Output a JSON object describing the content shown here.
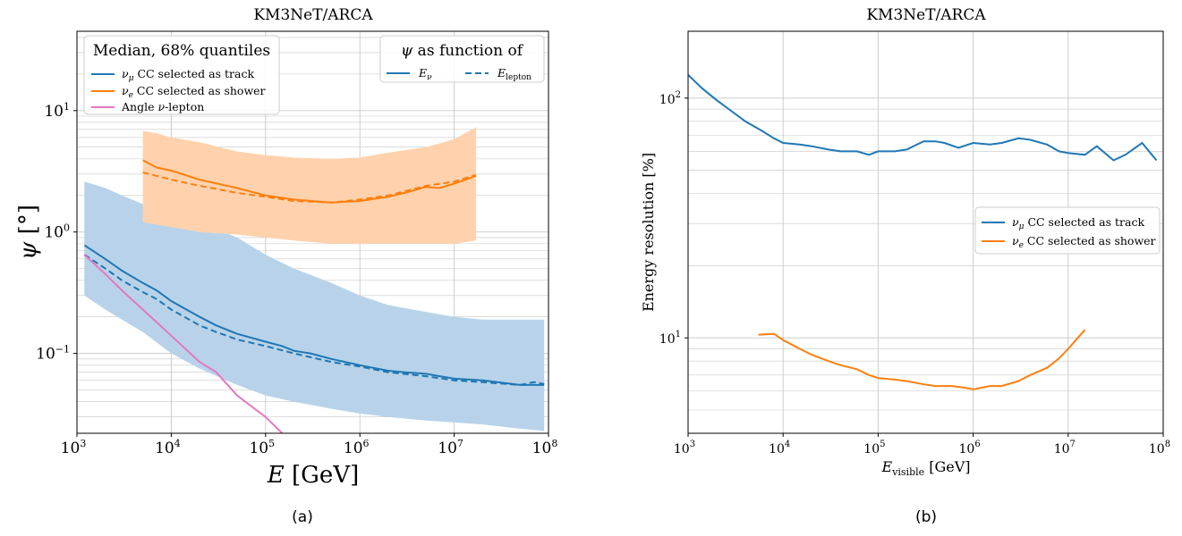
{
  "colors": {
    "blue": "#1f77b4",
    "orange": "#ff7f0e",
    "pink": "#e377c2",
    "blue_band": "#b8d3e9",
    "orange_band": "#ffd2ad",
    "grid": "#c8c8c8"
  },
  "chart_data": [
    {
      "type": "line",
      "panel_label": "(a)",
      "title": "KM3NeT/ARCA",
      "xlabel": "E [GeV]",
      "ylabel": "ψ [°]",
      "x_scale": "log",
      "y_scale": "log",
      "xlim": [
        1000,
        100000000
      ],
      "ylim": [
        0.022,
        45
      ],
      "x_ticks": [
        {
          "v": 1000,
          "label": "10^3"
        },
        {
          "v": 10000,
          "label": "10^4"
        },
        {
          "v": 100000,
          "label": "10^5"
        },
        {
          "v": 1000000,
          "label": "10^6"
        },
        {
          "v": 10000000,
          "label": "10^7"
        },
        {
          "v": 100000000,
          "label": "10^8"
        }
      ],
      "y_ticks": [
        {
          "v": 0.1,
          "label": "10^−1"
        },
        {
          "v": 1,
          "label": "10^0"
        },
        {
          "v": 10,
          "label": "10^1"
        }
      ],
      "grid": true,
      "legend_main": {
        "title": "Median, 68% quantiles",
        "position": "top-left",
        "entries": [
          {
            "label": "νμ CC selected as track",
            "color": "blue"
          },
          {
            "label": "νe CC selected as shower",
            "color": "orange"
          },
          {
            "label": "Angle ν-lepton",
            "color": "pink"
          }
        ]
      },
      "legend_style": {
        "title": "ψ as function of",
        "position": "top-right",
        "entries": [
          {
            "label": "Eν",
            "style": "solid"
          },
          {
            "label": "Elepton",
            "style": "dashed"
          }
        ]
      },
      "bands": [
        {
          "name": "νμ CC selected as track",
          "color": "blue_band",
          "x": [
            1200,
            2000,
            3000,
            5000,
            10000,
            20000,
            50000,
            100000,
            200000,
            500000,
            1000000,
            2000000,
            5000000,
            10000000,
            20000000,
            50000000,
            90000000
          ],
          "lower": [
            0.3,
            0.23,
            0.19,
            0.15,
            0.1,
            0.075,
            0.055,
            0.045,
            0.04,
            0.035,
            0.032,
            0.03,
            0.028,
            0.027,
            0.026,
            0.024,
            0.023
          ],
          "upper": [
            2.6,
            2.3,
            2.0,
            1.7,
            1.4,
            1.2,
            0.9,
            0.65,
            0.5,
            0.38,
            0.3,
            0.25,
            0.22,
            0.2,
            0.19,
            0.19,
            0.19
          ]
        },
        {
          "name": "νe CC selected as shower",
          "color": "orange_band",
          "x": [
            5000,
            7000,
            10000,
            20000,
            50000,
            100000,
            200000,
            500000,
            1000000,
            2000000,
            5000000,
            10000000,
            17000000
          ],
          "lower": [
            1.2,
            1.15,
            1.1,
            1.0,
            0.95,
            0.9,
            0.85,
            0.8,
            0.8,
            0.8,
            0.8,
            0.8,
            0.85
          ],
          "upper": [
            6.8,
            6.5,
            6.0,
            5.5,
            4.6,
            4.3,
            4.1,
            4.0,
            4.1,
            4.5,
            5.0,
            5.8,
            7.3
          ]
        }
      ],
      "series": [
        {
          "name": "νμ CC selected as track",
          "style": "solid",
          "color": "blue",
          "x": [
            1200,
            2000,
            3000,
            5000,
            7000,
            10000,
            20000,
            30000,
            50000,
            100000,
            150000,
            200000,
            300000,
            500000,
            1000000,
            2000000,
            3000000,
            5000000,
            7000000,
            10000000,
            20000000,
            50000000,
            90000000
          ],
          "y": [
            0.78,
            0.6,
            0.48,
            0.38,
            0.33,
            0.27,
            0.2,
            0.17,
            0.145,
            0.125,
            0.115,
            0.105,
            0.1,
            0.09,
            0.08,
            0.072,
            0.07,
            0.068,
            0.065,
            0.062,
            0.06,
            0.055,
            0.055
          ]
        },
        {
          "name": "νμ CC selected as track",
          "style": "dashed",
          "color": "blue",
          "x": [
            1200,
            2000,
            3000,
            5000,
            7000,
            10000,
            20000,
            30000,
            50000,
            100000,
            200000,
            500000,
            1000000,
            2000000,
            5000000,
            10000000,
            20000000,
            50000000,
            70000000,
            90000000
          ],
          "y": [
            0.65,
            0.5,
            0.4,
            0.32,
            0.28,
            0.23,
            0.17,
            0.15,
            0.13,
            0.115,
            0.1,
            0.085,
            0.078,
            0.07,
            0.065,
            0.06,
            0.058,
            0.055,
            0.058,
            0.056
          ]
        },
        {
          "name": "νe CC selected as shower",
          "style": "solid",
          "color": "orange",
          "x": [
            5000,
            7000,
            10000,
            20000,
            50000,
            100000,
            200000,
            500000,
            1000000,
            2000000,
            3000000,
            5000000,
            7000000,
            10000000,
            17000000
          ],
          "y": [
            3.9,
            3.4,
            3.2,
            2.7,
            2.3,
            2.0,
            1.85,
            1.75,
            1.8,
            1.95,
            2.1,
            2.35,
            2.3,
            2.5,
            2.9
          ]
        },
        {
          "name": "νe CC selected as shower",
          "style": "dashed",
          "color": "orange",
          "x": [
            5000,
            7000,
            10000,
            20000,
            50000,
            100000,
            200000,
            500000,
            1000000,
            2000000,
            5000000,
            10000000,
            17000000
          ],
          "y": [
            3.1,
            2.9,
            2.7,
            2.4,
            2.1,
            1.95,
            1.8,
            1.75,
            1.85,
            2.0,
            2.4,
            2.6,
            2.95
          ]
        },
        {
          "name": "Angle ν-lepton",
          "style": "solid",
          "color": "pink",
          "x": [
            1200,
            2000,
            3000,
            5000,
            10000,
            20000,
            30000,
            50000,
            100000,
            150000
          ],
          "y": [
            0.65,
            0.45,
            0.33,
            0.23,
            0.14,
            0.085,
            0.07,
            0.045,
            0.03,
            0.022
          ]
        }
      ]
    },
    {
      "type": "line",
      "panel_label": "(b)",
      "title": "KM3NeT/ARCA",
      "xlabel": "E_visible [GeV]",
      "ylabel": "Energy resolution [%]",
      "x_scale": "log",
      "y_scale": "log",
      "xlim": [
        1000,
        100000000
      ],
      "ylim": [
        4.0,
        190
      ],
      "x_ticks": [
        {
          "v": 1000,
          "label": "10^3"
        },
        {
          "v": 10000,
          "label": "10^4"
        },
        {
          "v": 100000,
          "label": "10^5"
        },
        {
          "v": 1000000,
          "label": "10^6"
        },
        {
          "v": 10000000,
          "label": "10^7"
        },
        {
          "v": 100000000,
          "label": "10^8"
        }
      ],
      "y_ticks": [
        {
          "v": 10,
          "label": "10^1"
        },
        {
          "v": 100,
          "label": "10^2"
        }
      ],
      "grid": true,
      "legend": {
        "position": "center-right",
        "entries": [
          {
            "label": "νμ CC selected as track",
            "color": "blue"
          },
          {
            "label": "νe CC selected as shower",
            "color": "orange"
          }
        ]
      },
      "series": [
        {
          "name": "νμ CC selected as track",
          "style": "solid",
          "color": "blue",
          "x": [
            1000,
            1400,
            2000,
            3000,
            4000,
            6000,
            8000,
            10000,
            15000,
            20000,
            30000,
            40000,
            60000,
            80000,
            100000,
            150000,
            200000,
            300000,
            400000,
            500000,
            700000,
            1000000,
            1500000,
            2000000,
            3000000,
            4000000,
            6000000,
            8000000,
            10000000,
            15000000,
            20000000,
            30000000,
            40000000,
            60000000,
            85000000
          ],
          "y": [
            125,
            110,
            98,
            87,
            80,
            73,
            68,
            65,
            64,
            63,
            61,
            60,
            60,
            58,
            60,
            60,
            61,
            66,
            66,
            65,
            62,
            65,
            64,
            65,
            68,
            67,
            64,
            60,
            59,
            58,
            63,
            55,
            58,
            65,
            55
          ]
        },
        {
          "name": "νe CC selected as shower",
          "style": "solid",
          "color": "orange",
          "x": [
            5500,
            8000,
            10000,
            15000,
            20000,
            30000,
            40000,
            60000,
            80000,
            100000,
            150000,
            200000,
            300000,
            400000,
            600000,
            800000,
            1000000,
            1500000,
            2000000,
            3000000,
            4000000,
            6000000,
            8000000,
            10000000,
            15000000
          ],
          "y": [
            10.3,
            10.4,
            9.8,
            9.0,
            8.5,
            8.0,
            7.7,
            7.4,
            7.0,
            6.8,
            6.7,
            6.6,
            6.4,
            6.3,
            6.3,
            6.2,
            6.1,
            6.3,
            6.3,
            6.6,
            7.0,
            7.5,
            8.2,
            9.0,
            10.8
          ]
        }
      ]
    }
  ]
}
